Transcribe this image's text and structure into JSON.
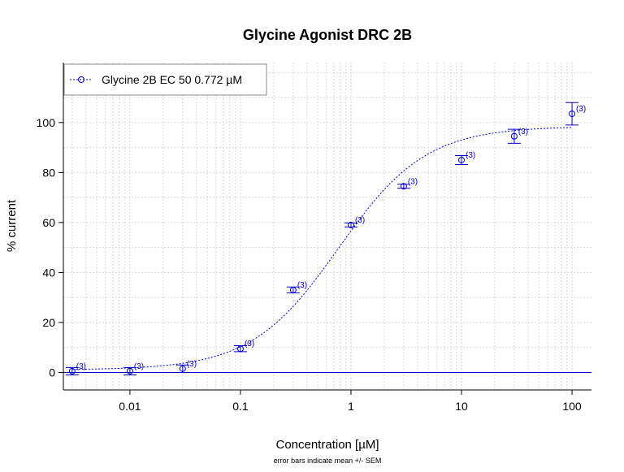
{
  "chart_data": {
    "type": "scatter",
    "title": "Glycine Agonist DRC 2B",
    "xlabel": "Concentration [µM]",
    "ylabel": "% current",
    "caption": "error bars indicate mean +/- SEM",
    "x_scale": "log",
    "xlim": [
      0.0025,
      150
    ],
    "ylim": [
      -7,
      124
    ],
    "x_ticks": [
      0.01,
      0.1,
      1,
      10,
      100
    ],
    "x_tick_labels": [
      "0.01",
      "0.1",
      "1",
      "10",
      "100"
    ],
    "y_ticks": [
      0,
      20,
      40,
      60,
      80,
      100
    ],
    "y_tick_labels": [
      "0",
      "20",
      "40",
      "60",
      "80",
      "100"
    ],
    "grid": true,
    "legend_position": "top-left",
    "legend": [
      {
        "label": "Glycine 2B EC 50 0.772 µM"
      }
    ],
    "series": [
      {
        "name": "Glycine 2B EC 50 0.772 µM",
        "color": "#0000cc",
        "x": [
          0.003,
          0.01,
          0.03,
          0.1,
          0.3,
          1,
          3,
          10,
          30,
          100
        ],
        "y": [
          0.5,
          0.5,
          1.5,
          9.5,
          33,
          59,
          74.5,
          85,
          94.5,
          103.5
        ],
        "sem": [
          1.5,
          1.5,
          1.5,
          1.2,
          1.2,
          0.8,
          0.8,
          1.8,
          2.8,
          4.5
        ],
        "n": [
          3,
          3,
          3,
          3,
          3,
          3,
          3,
          3,
          3,
          3
        ],
        "n_labels": [
          "(3)",
          "(3)",
          "(3)",
          "(3)",
          "(3)",
          "(3)",
          "(3)",
          "(3)",
          "(3)",
          "(3)"
        ]
      }
    ],
    "fit": {
      "model": "hill",
      "ec50": 0.772,
      "bottom": 1,
      "top": 98.5,
      "hill": 1.1
    },
    "reference_line_y": 0
  }
}
